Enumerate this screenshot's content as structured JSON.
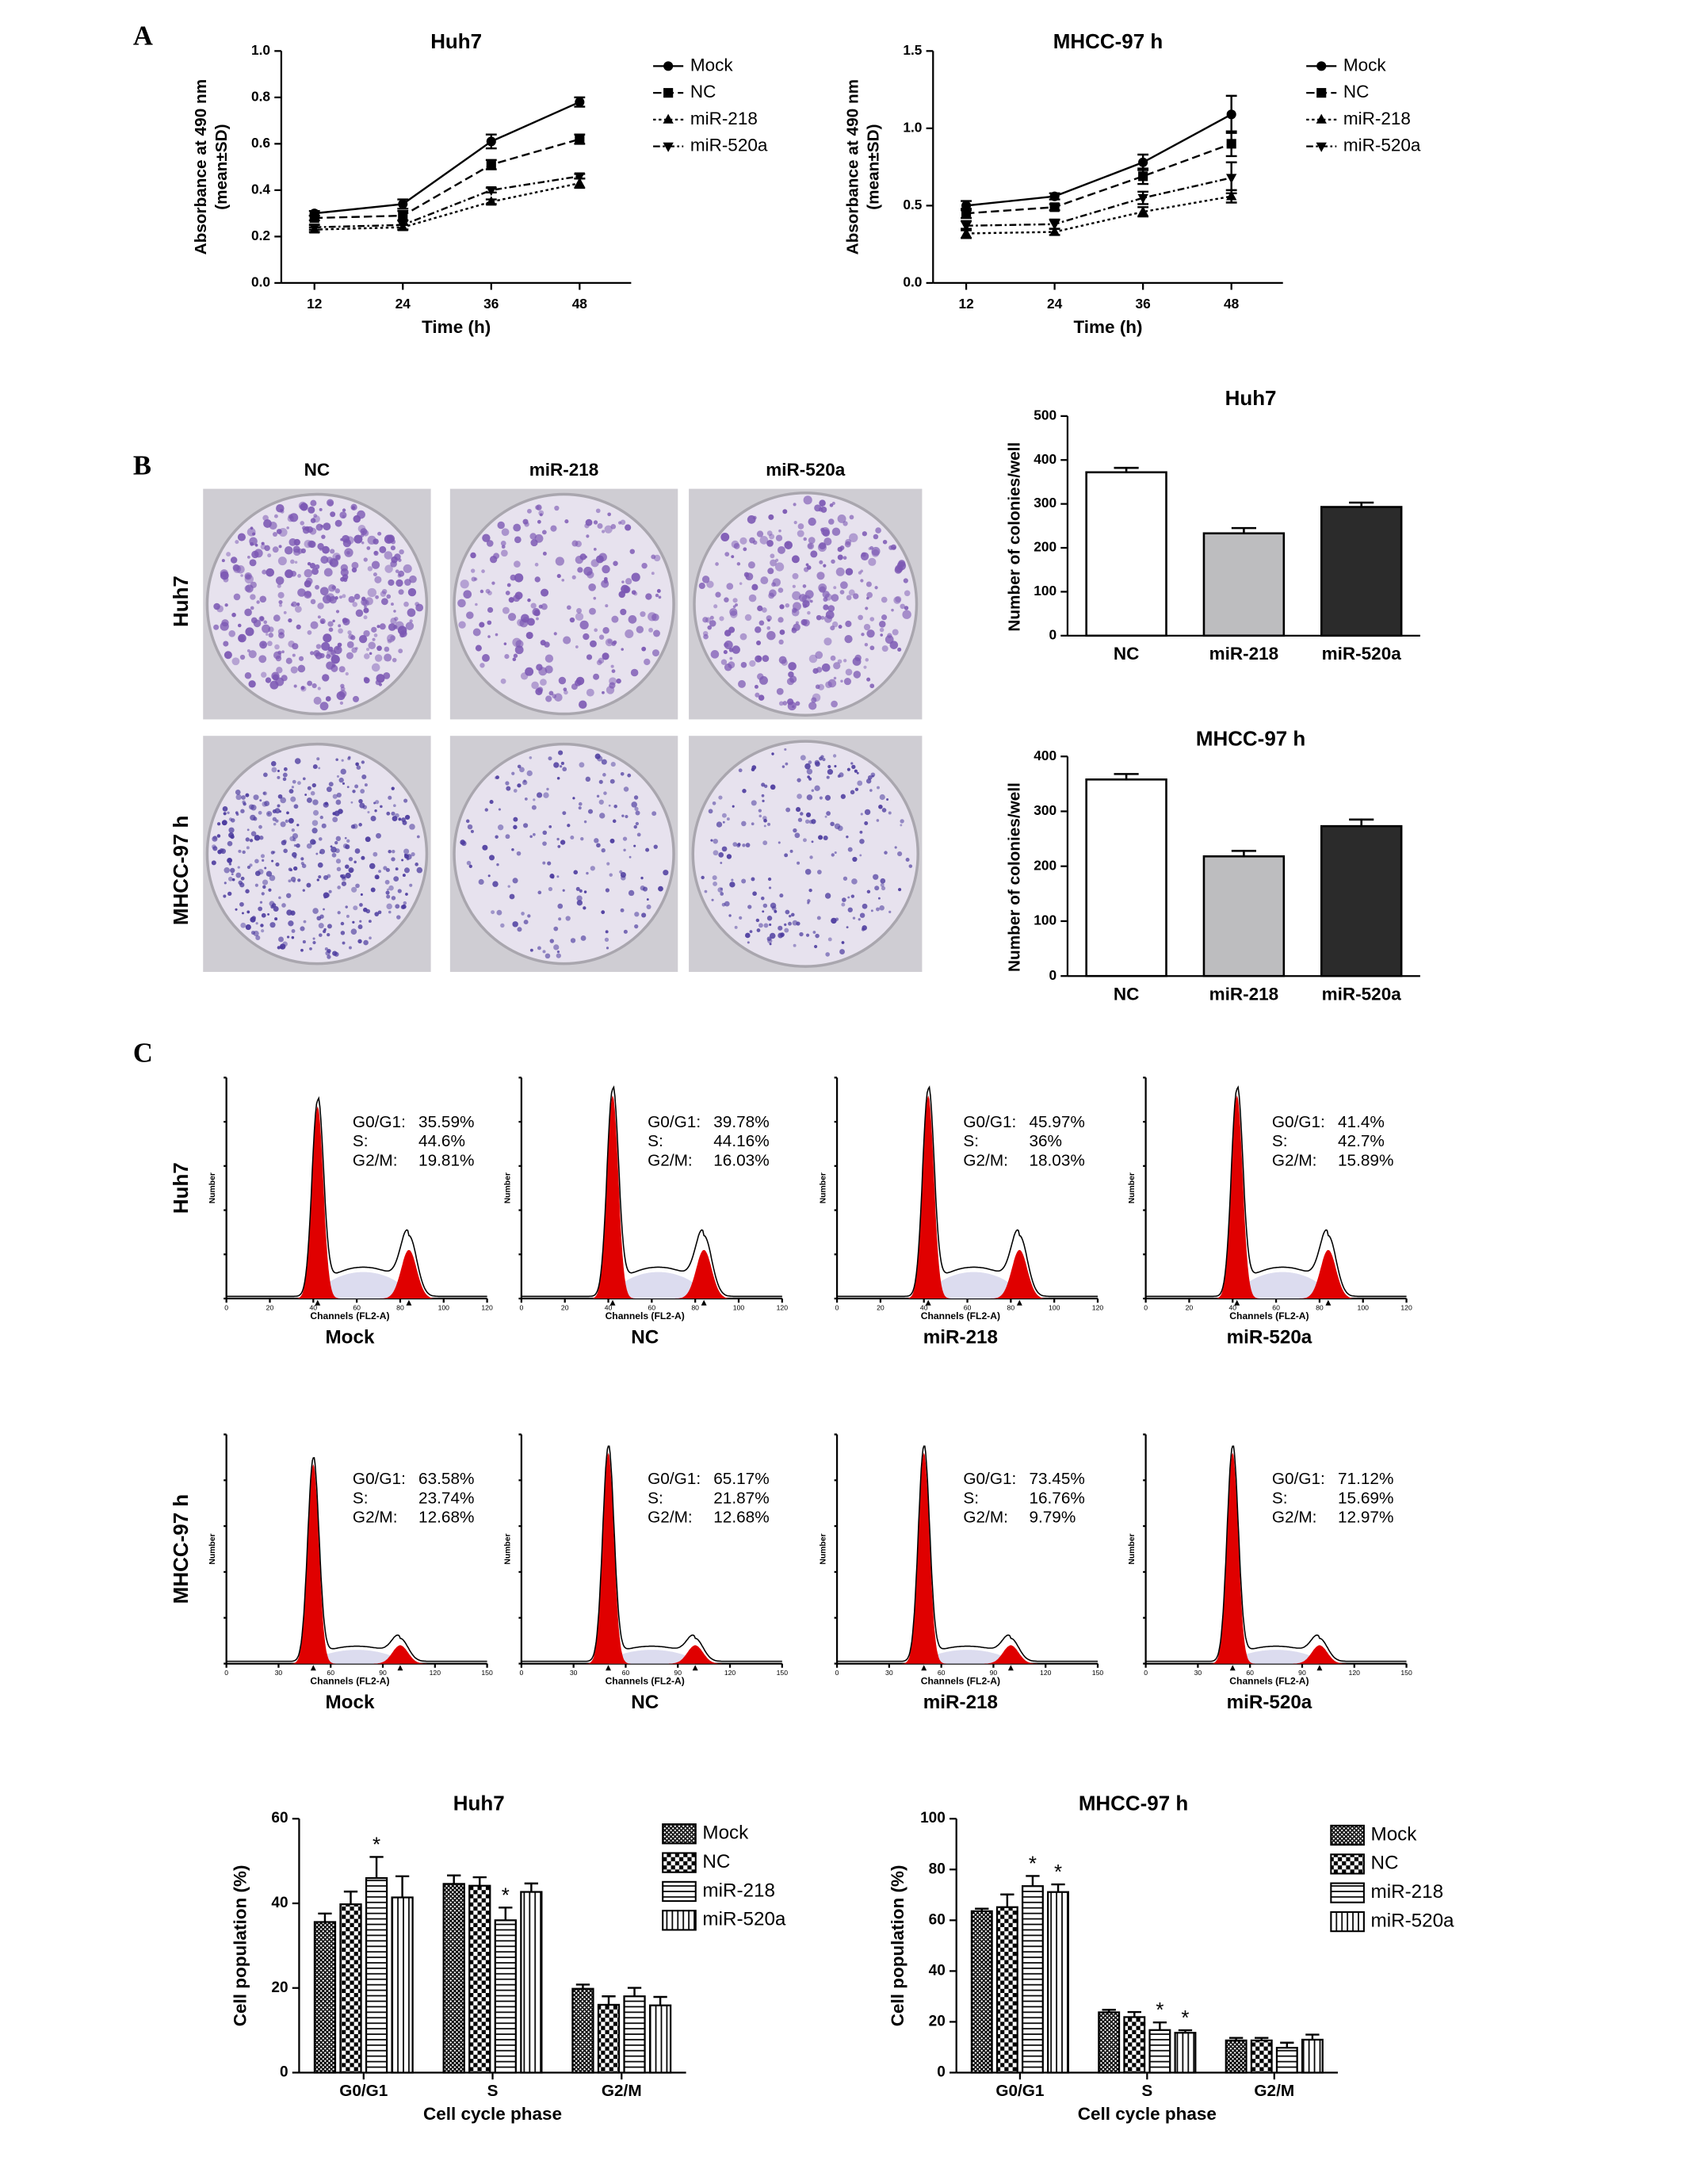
{
  "panel_labels": [
    "A",
    "B",
    "C"
  ],
  "chart_data": [
    {
      "type": "line",
      "title": "Huh7",
      "xlabel": "Time (h)",
      "ylabel": [
        "Absorbance at 490 nm",
        "(mean±SD)"
      ],
      "x": [
        12,
        24,
        36,
        48
      ],
      "xlim": [
        7.5,
        55
      ],
      "xticks": [
        12,
        24,
        36,
        48
      ],
      "ylim": [
        0,
        1.0
      ],
      "yticks": [
        {
          "value": 0,
          "label": "0.0"
        },
        0.2,
        0.4,
        0.6,
        0.8,
        {
          "value": 1.0,
          "label": "1.0"
        }
      ],
      "series": [
        {
          "name": "Mock",
          "color": "#000000",
          "marker": "circle",
          "line_style": "solid",
          "values": [
            0.3,
            0.34,
            0.61,
            0.78
          ],
          "errors": [
            0.01,
            0.02,
            0.03,
            0.02
          ]
        },
        {
          "name": "NC",
          "color": "#000000",
          "marker": "square",
          "line_style": "dashed",
          "values": [
            0.28,
            0.29,
            0.51,
            0.62
          ],
          "errors": [
            0.01,
            0.02,
            0.02,
            0.02
          ]
        },
        {
          "name": "miR-218",
          "color": "#000000",
          "marker": "triangle-up",
          "line_style": "dotted",
          "values": [
            0.23,
            0.24,
            0.35,
            0.43
          ],
          "errors": [
            0.01,
            0.01,
            0.01,
            0.02
          ]
        },
        {
          "name": "miR-520a",
          "color": "#000000",
          "marker": "triangle-down",
          "line_style": "dashdot",
          "values": [
            0.24,
            0.25,
            0.4,
            0.46
          ],
          "errors": [
            0.01,
            0.02,
            0.01,
            0.01
          ]
        }
      ]
    },
    {
      "type": "line",
      "title": "MHCC-97 h",
      "xlabel": "Time (h)",
      "ylabel": [
        "Absorbance at 490 nm",
        "(mean±SD)"
      ],
      "x": [
        12,
        24,
        36,
        48
      ],
      "xlim": [
        7.5,
        55
      ],
      "xticks": [
        12,
        24,
        36,
        48
      ],
      "ylim": [
        0,
        1.5
      ],
      "yticks": [
        {
          "value": 0,
          "label": "0.0"
        },
        0.5,
        {
          "value": 1.0,
          "label": "1.0"
        },
        1.5
      ],
      "series": [
        {
          "name": "Mock",
          "color": "#000000",
          "marker": "circle",
          "line_style": "solid",
          "values": [
            0.5,
            0.56,
            0.78,
            1.09
          ],
          "errors": [
            0.03,
            0.02,
            0.05,
            0.12
          ]
        },
        {
          "name": "NC",
          "color": "#000000",
          "marker": "square",
          "line_style": "dashed",
          "values": [
            0.45,
            0.49,
            0.69,
            0.9
          ],
          "errors": [
            0.03,
            0.02,
            0.05,
            0.08
          ]
        },
        {
          "name": "miR-218",
          "color": "#000000",
          "marker": "triangle-up",
          "line_style": "dotted",
          "values": [
            0.32,
            0.33,
            0.46,
            0.56
          ],
          "errors": [
            0.03,
            0.02,
            0.03,
            0.04
          ]
        },
        {
          "name": "miR-520a",
          "color": "#000000",
          "marker": "triangle-down",
          "line_style": "dashdot",
          "values": [
            0.37,
            0.38,
            0.55,
            0.68
          ],
          "errors": [
            0.03,
            0.03,
            0.04,
            0.1
          ]
        }
      ]
    },
    {
      "type": "bar",
      "title": "Huh7",
      "ylabel": "Number of colonies/well",
      "categories": [
        "NC",
        "miR-218",
        "miR-520a"
      ],
      "values": [
        372,
        233,
        293
      ],
      "errors": [
        10,
        12,
        10
      ],
      "colors": [
        "#ffffff",
        "#bdbdbf",
        "#2b2b2b"
      ],
      "ylim": [
        0,
        500
      ],
      "yticks": [
        0,
        100,
        200,
        300,
        400,
        500
      ]
    },
    {
      "type": "bar",
      "title": "MHCC-97 h",
      "ylabel": "Number of colonies/well",
      "categories": [
        "NC",
        "miR-218",
        "miR-520a"
      ],
      "values": [
        358,
        218,
        273
      ],
      "errors": [
        10,
        10,
        12
      ],
      "colors": [
        "#ffffff",
        "#bdbdbf",
        "#2b2b2b"
      ],
      "ylim": [
        0,
        400
      ],
      "yticks": [
        0,
        100,
        200,
        300,
        400
      ]
    },
    {
      "type": "grouped_bar",
      "title": "Huh7",
      "xlabel": "Cell cycle phase",
      "ylabel": "Cell population (%)",
      "categories": [
        "G0/G1",
        "S",
        "G2/M"
      ],
      "ylim": [
        0,
        60
      ],
      "yticks": [
        0,
        20,
        40,
        60
      ],
      "series": [
        {
          "name": "Mock",
          "pattern": "crosshatch",
          "values": [
            35.59,
            44.6,
            19.81
          ],
          "errors": [
            2,
            2,
            1
          ]
        },
        {
          "name": "NC",
          "pattern": "checker",
          "values": [
            39.78,
            44.16,
            16.03
          ],
          "errors": [
            3,
            2,
            2
          ]
        },
        {
          "name": "miR-218",
          "pattern": "horizontal",
          "values": [
            45.97,
            36,
            18.03
          ],
          "errors": [
            5,
            3,
            2
          ]
        },
        {
          "name": "miR-520a",
          "pattern": "vertical",
          "values": [
            41.4,
            42.7,
            15.89
          ],
          "errors": [
            5,
            2,
            2
          ]
        }
      ],
      "annotations": [
        {
          "series": 2,
          "category": 0,
          "label": "*"
        },
        {
          "series": 2,
          "category": 1,
          "label": "*"
        }
      ]
    },
    {
      "type": "grouped_bar",
      "title": "MHCC-97 h",
      "xlabel": "Cell cycle phase",
      "ylabel": "Cell population (%)",
      "categories": [
        "G0/G1",
        "S",
        "G2/M"
      ],
      "ylim": [
        0,
        100
      ],
      "yticks": [
        0,
        20,
        40,
        60,
        80,
        100
      ],
      "series": [
        {
          "name": "Mock",
          "pattern": "crosshatch",
          "values": [
            63.58,
            23.74,
            12.68
          ],
          "errors": [
            1,
            1,
            1
          ]
        },
        {
          "name": "NC",
          "pattern": "checker",
          "values": [
            65.17,
            21.87,
            12.68
          ],
          "errors": [
            5,
            2,
            1
          ]
        },
        {
          "name": "miR-218",
          "pattern": "horizontal",
          "values": [
            73.45,
            16.76,
            9.79
          ],
          "errors": [
            4,
            3,
            2
          ]
        },
        {
          "name": "miR-520a",
          "pattern": "vertical",
          "values": [
            71.12,
            15.69,
            12.97
          ],
          "errors": [
            3,
            1,
            2
          ]
        }
      ],
      "annotations": [
        {
          "series": 2,
          "category": 0,
          "label": "*"
        },
        {
          "series": 3,
          "category": 0,
          "label": "*"
        },
        {
          "series": 2,
          "category": 1,
          "label": "*"
        },
        {
          "series": 3,
          "category": 1,
          "label": "*"
        }
      ]
    }
  ],
  "colony": {
    "columns": [
      "NC",
      "miR-218",
      "miR-520a"
    ],
    "rows": [
      "Huh7",
      "MHCC-97 h"
    ]
  },
  "flow": {
    "xlabel": "Channels (FL2-A)",
    "ylabel": "Number",
    "phase_labels": [
      "G0/G1:",
      "S:",
      "G2/M:"
    ],
    "rows": [
      {
        "label": "Huh7",
        "xlim": [
          0,
          120
        ],
        "xticks": [
          0,
          20,
          40,
          60,
          80,
          100,
          120
        ],
        "panels": [
          {
            "name": "Mock",
            "stats": [
              "35.59%",
              "44.6%",
              "19.81%"
            ]
          },
          {
            "name": "NC",
            "stats": [
              "39.78%",
              "44.16%",
              "16.03%"
            ]
          },
          {
            "name": "miR-218",
            "stats": [
              "45.97%",
              "36%",
              "18.03%"
            ]
          },
          {
            "name": "miR-520a",
            "stats": [
              "41.4%",
              "42.7%",
              "15.89%"
            ]
          }
        ]
      },
      {
        "label": "MHCC-97 h",
        "xlim": [
          0,
          150
        ],
        "xticks": [
          0,
          30,
          60,
          90,
          120,
          150
        ],
        "panels": [
          {
            "name": "Mock",
            "stats": [
              "63.58%",
              "23.74%",
              "12.68%"
            ]
          },
          {
            "name": "NC",
            "stats": [
              "65.17%",
              "21.87%",
              "12.68%"
            ]
          },
          {
            "name": "miR-218",
            "stats": [
              "73.45%",
              "16.76%",
              "9.79%"
            ]
          },
          {
            "name": "miR-520a",
            "stats": [
              "71.12%",
              "15.69%",
              "12.97%"
            ]
          }
        ]
      }
    ]
  }
}
